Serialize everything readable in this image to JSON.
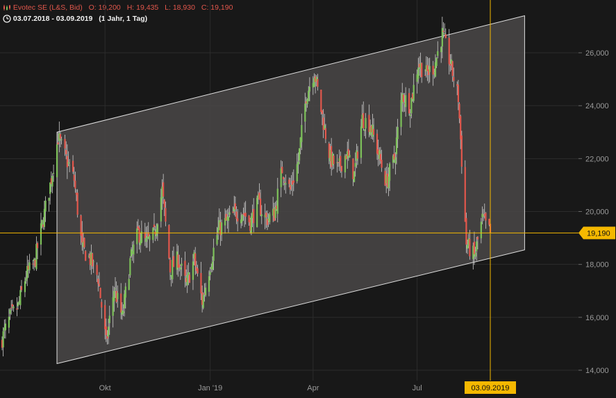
{
  "header": {
    "instrument": "Evotec SE (L&S, Bid)",
    "open": "O: 19,200",
    "high": "H: 19,435",
    "low": "L: 18,930",
    "close": "C: 19,190",
    "period": "03.07.2018 - 03.09.2019",
    "interval": "(1 Jahr, 1 Tag)"
  },
  "chart_data": {
    "type": "candlestick",
    "title": "Evotec SE (L&S, Bid)",
    "ylim": [
      13.5,
      28.0
    ],
    "y_ticks": [
      "14,000",
      "16,000",
      "18,000",
      "20,000",
      "22,000",
      "24,000",
      "26,000"
    ],
    "x_labels": [
      "Okt",
      "Jan '19",
      "Apr",
      "Jul"
    ],
    "last_price_label": "19,190",
    "last_price": 19.19,
    "crosshair_date_label": "03.09.2019",
    "colors": {
      "up": "#7dc15a",
      "down": "#e2574c",
      "grid": "#2c2c2c",
      "text": "#9a9a9a",
      "crosshair": "#f5b800",
      "channel_fill": "#4a4848",
      "channel_line": "#e0e0e0"
    },
    "channel": {
      "upper": {
        "start_date": "2018-08-20",
        "start_price": 23.0,
        "end_date": "2019-10-03",
        "end_price": 27.4
      },
      "lower": {
        "start_date": "2018-08-20",
        "start_price": 14.25,
        "end_date": "2019-10-03",
        "end_price": 18.55
      }
    },
    "close_series": [
      [
        "2018-07-03",
        15.2
      ],
      [
        "2018-07-10",
        16.0
      ],
      [
        "2018-07-17",
        16.4
      ],
      [
        "2018-07-24",
        17.6
      ],
      [
        "2018-07-31",
        18.0
      ],
      [
        "2018-08-07",
        19.5
      ],
      [
        "2018-08-14",
        21.0
      ],
      [
        "2018-08-21",
        22.8
      ],
      [
        "2018-08-28",
        22.0
      ],
      [
        "2018-09-04",
        21.2
      ],
      [
        "2018-09-11",
        18.6
      ],
      [
        "2018-09-18",
        18.2
      ],
      [
        "2018-09-25",
        17.5
      ],
      [
        "2018-10-02",
        15.0
      ],
      [
        "2018-10-09",
        17.1
      ],
      [
        "2018-10-16",
        16.0
      ],
      [
        "2018-10-23",
        18.1
      ],
      [
        "2018-10-30",
        19.2
      ],
      [
        "2018-11-06",
        18.8
      ],
      [
        "2018-11-13",
        19.1
      ],
      [
        "2018-11-20",
        20.8
      ],
      [
        "2018-11-27",
        17.8
      ],
      [
        "2018-12-04",
        18.2
      ],
      [
        "2018-12-11",
        17.2
      ],
      [
        "2018-12-18",
        18.2
      ],
      [
        "2018-12-25",
        16.6
      ],
      [
        "2019-01-01",
        18.0
      ],
      [
        "2019-01-08",
        19.3
      ],
      [
        "2019-01-15",
        19.6
      ],
      [
        "2019-01-22",
        19.9
      ],
      [
        "2019-01-29",
        20.0
      ],
      [
        "2019-02-05",
        19.6
      ],
      [
        "2019-02-12",
        20.3
      ],
      [
        "2019-02-19",
        19.7
      ],
      [
        "2019-02-26",
        19.9
      ],
      [
        "2019-03-05",
        21.6
      ],
      [
        "2019-03-12",
        20.8
      ],
      [
        "2019-03-19",
        21.9
      ],
      [
        "2019-03-26",
        24.4
      ],
      [
        "2019-04-02",
        25.3
      ],
      [
        "2019-04-09",
        23.6
      ],
      [
        "2019-04-16",
        22.0
      ],
      [
        "2019-04-23",
        21.6
      ],
      [
        "2019-04-30",
        22.2
      ],
      [
        "2019-05-07",
        21.4
      ],
      [
        "2019-05-14",
        23.5
      ],
      [
        "2019-05-21",
        23.3
      ],
      [
        "2019-05-28",
        22.2
      ],
      [
        "2019-06-04",
        21.1
      ],
      [
        "2019-06-11",
        22.0
      ],
      [
        "2019-06-18",
        24.4
      ],
      [
        "2019-06-25",
        24.0
      ],
      [
        "2019-07-02",
        25.6
      ],
      [
        "2019-07-09",
        25.2
      ],
      [
        "2019-07-16",
        25.5
      ],
      [
        "2019-07-23",
        26.7
      ],
      [
        "2019-07-30",
        25.6
      ],
      [
        "2019-08-06",
        24.3
      ],
      [
        "2019-08-13",
        18.8
      ],
      [
        "2019-08-20",
        18.3
      ],
      [
        "2019-08-27",
        19.7
      ],
      [
        "2019-09-03",
        19.19
      ]
    ]
  }
}
